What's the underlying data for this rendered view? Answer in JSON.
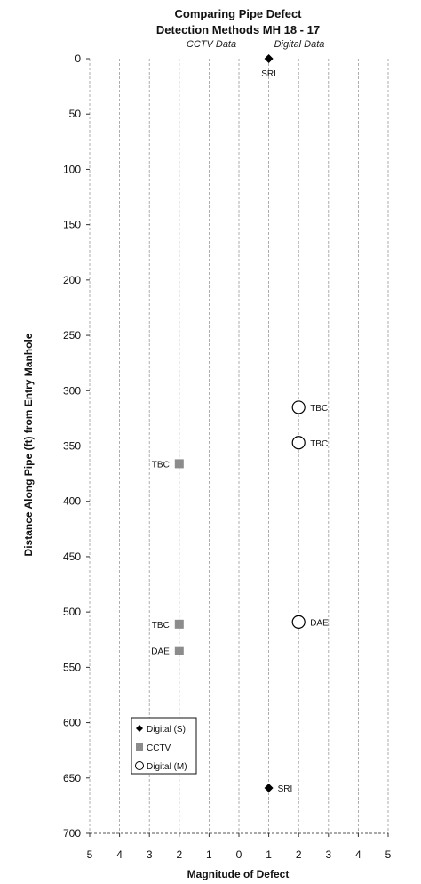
{
  "chart_data": {
    "type": "scatter",
    "title_lines": [
      "Comparing Pipe Defect",
      "Detection Methods MH 18 - 17"
    ],
    "subtitles": {
      "left": "CCTV Data",
      "right": "Digital Data"
    },
    "xlabel": "Magnitude of Defect",
    "ylabel": "Distance Along Pipe (ft) from Entry Manhole",
    "x_ticks": [
      {
        "label": "5",
        "value": -5
      },
      {
        "label": "4",
        "value": -4
      },
      {
        "label": "3",
        "value": -3
      },
      {
        "label": "2",
        "value": -2
      },
      {
        "label": "1",
        "value": -1
      },
      {
        "label": "0",
        "value": 0
      },
      {
        "label": "1",
        "value": 1
      },
      {
        "label": "2",
        "value": 2
      },
      {
        "label": "3",
        "value": 3
      },
      {
        "label": "4",
        "value": 4
      },
      {
        "label": "5",
        "value": 5
      }
    ],
    "xlim": [
      -5,
      5
    ],
    "ylim": [
      0,
      700
    ],
    "y_inverted": true,
    "y_ticks": [
      0,
      50,
      100,
      150,
      200,
      250,
      300,
      350,
      400,
      450,
      500,
      550,
      600,
      650,
      700
    ],
    "vertical_gridlines": true,
    "legend_placement": "bottom-left",
    "colors": {
      "digital_s": "#000000",
      "cctv": "#8c8c8c",
      "digital_m": "#000000",
      "grid": "#9a9a9a"
    },
    "series": [
      {
        "name": "Digital (S)",
        "marker": "diamond",
        "points": [
          {
            "x": 1,
            "y": 0,
            "label": "SRI"
          },
          {
            "x": 1,
            "y": 659,
            "label": "SRI"
          }
        ]
      },
      {
        "name": "CCTV",
        "marker": "square",
        "points": [
          {
            "x": -2,
            "y": 366,
            "label": "TBC"
          },
          {
            "x": -2,
            "y": 511,
            "label": "TBC"
          },
          {
            "x": -2,
            "y": 535,
            "label": "DAE"
          }
        ]
      },
      {
        "name": "Digital (M)",
        "marker": "circle",
        "points": [
          {
            "x": 2,
            "y": 315,
            "label": "TBC"
          },
          {
            "x": 2,
            "y": 347,
            "label": "TBC"
          },
          {
            "x": 2,
            "y": 509,
            "label": "DAE"
          }
        ]
      }
    ]
  }
}
